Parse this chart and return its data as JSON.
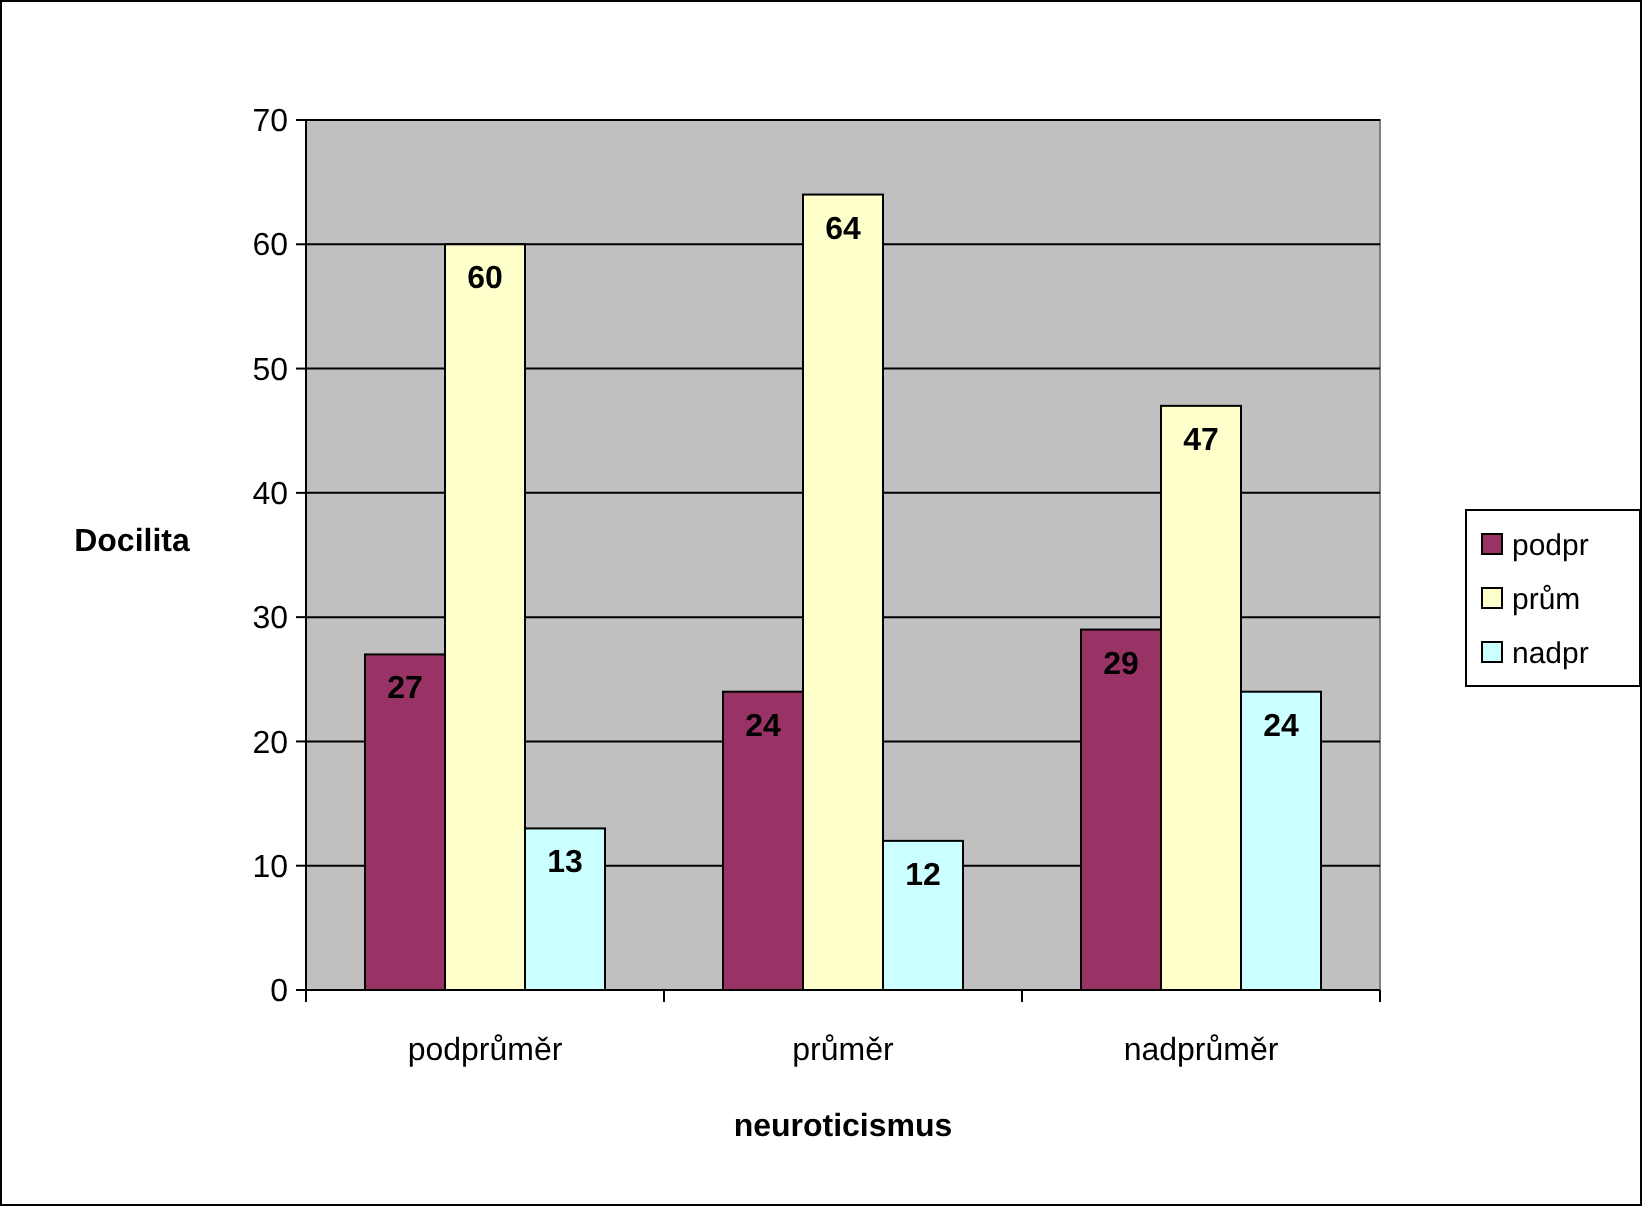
{
  "chart_data": {
    "type": "bar",
    "xlabel": "neuroticismus",
    "ylabel": "Docilita",
    "categories": [
      "podprůměr",
      "průměr",
      "nadprůměr"
    ],
    "series": [
      {
        "name": "podpr",
        "color": "#993366",
        "values": [
          27,
          24,
          29
        ]
      },
      {
        "name": "prům",
        "color": "#ffffcc",
        "values": [
          60,
          64,
          47
        ]
      },
      {
        "name": "nadpr",
        "color": "#ccffff",
        "values": [
          13,
          12,
          24
        ]
      }
    ],
    "ylim": [
      0,
      70
    ],
    "yticks": [
      0,
      10,
      20,
      30,
      40,
      50,
      60,
      70
    ],
    "grid": "y",
    "legend": "right",
    "data_labels": true
  }
}
